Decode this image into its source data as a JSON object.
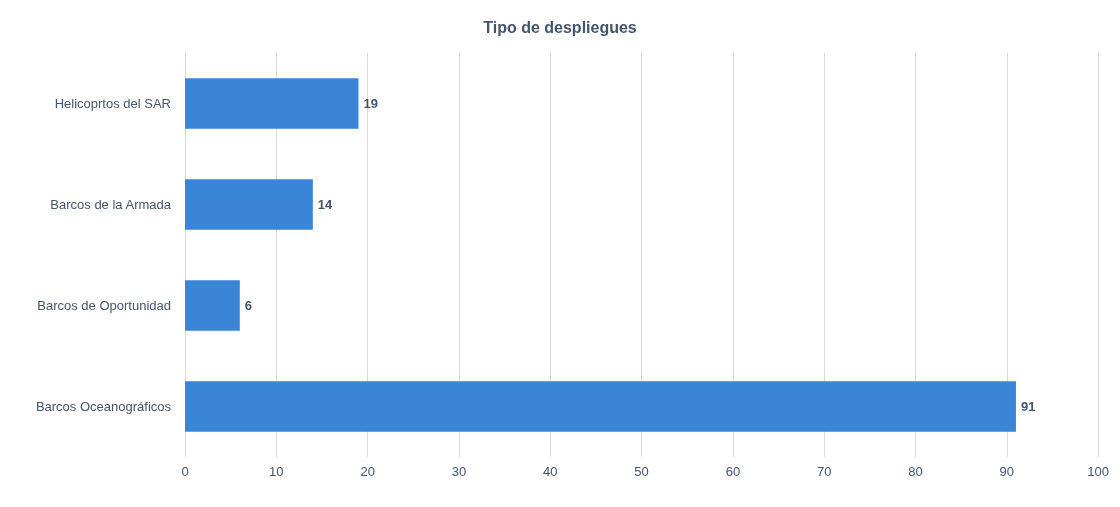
{
  "chart_data": {
    "type": "bar",
    "orientation": "horizontal",
    "title": "Tipo de despliegues",
    "categories": [
      "Helicoprtos del SAR",
      "Barcos de la Armada",
      "Barcos de Oportunidad",
      "Barcos Oceanográficos"
    ],
    "values": [
      19,
      14,
      6,
      91
    ],
    "color": "#3a85d6",
    "xlim": [
      0,
      100
    ],
    "xticks": [
      0,
      10,
      20,
      30,
      40,
      50,
      60,
      70,
      80,
      90,
      100
    ],
    "grid": "x",
    "data_labels": true
  }
}
